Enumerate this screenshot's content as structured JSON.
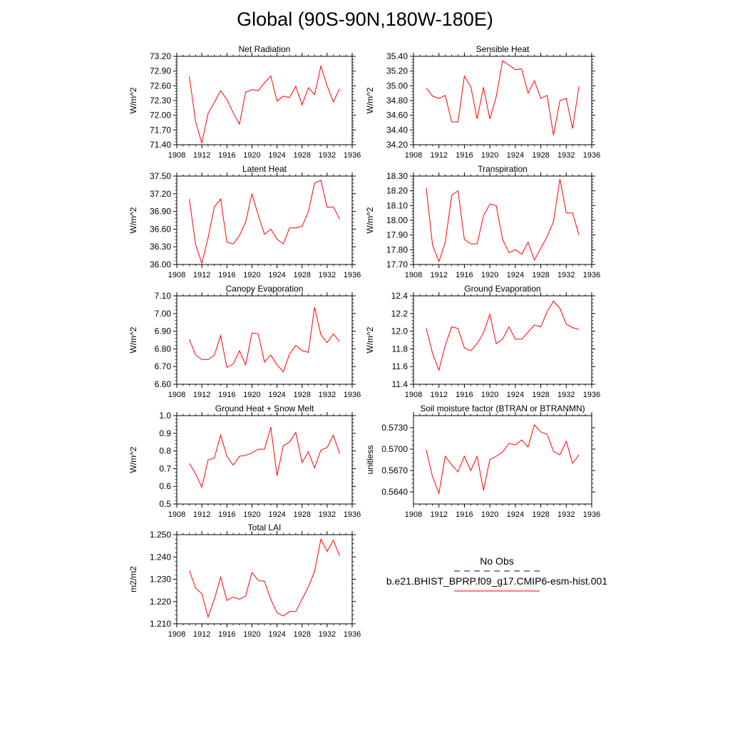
{
  "page": {
    "title": "Global (90S-90N,180W-180E)"
  },
  "legend": {
    "entries": [
      {
        "label": "No Obs",
        "color": "#000080",
        "style": "dashed"
      },
      {
        "label": "b.e21.BHIST_BPRP.f09_g17.CMIP6-esm-hist.001",
        "color": "#ff0000",
        "style": "solid"
      }
    ]
  },
  "chart_data": [
    {
      "type": "line",
      "title": "Net Radiation",
      "ylabel": "W/m^2",
      "xlim": [
        1908,
        1936
      ],
      "xticks": [
        "1908",
        "1912",
        "1916",
        "1920",
        "1924",
        "1928",
        "1932",
        "1936"
      ],
      "ylim": [
        71.4,
        73.2
      ],
      "yticks": [
        "71.40",
        "71.70",
        "72.00",
        "72.30",
        "72.60",
        "72.90",
        "73.20"
      ],
      "series": [
        {
          "color": "#ff0000",
          "x": [
            1910,
            1911,
            1912,
            1913,
            1914,
            1915,
            1916,
            1917,
            1918,
            1919,
            1920,
            1921,
            1922,
            1923,
            1924,
            1925,
            1926,
            1927,
            1928,
            1929,
            1930,
            1931,
            1932,
            1933,
            1934
          ],
          "values": [
            72.79,
            71.87,
            71.43,
            72.04,
            72.26,
            72.5,
            72.32,
            72.05,
            71.82,
            72.47,
            72.52,
            72.5,
            72.66,
            72.8,
            72.29,
            72.39,
            72.36,
            72.59,
            72.21,
            72.56,
            72.42,
            73.0,
            72.6,
            72.27,
            72.54
          ]
        }
      ]
    },
    {
      "type": "line",
      "title": "Sensible Heat",
      "ylabel": "W/m^2",
      "xlim": [
        1908,
        1936
      ],
      "xticks": [
        "1908",
        "1912",
        "1916",
        "1920",
        "1924",
        "1928",
        "1932",
        "1936"
      ],
      "ylim": [
        34.2,
        35.4
      ],
      "yticks": [
        "34.20",
        "34.40",
        "34.60",
        "34.80",
        "35.00",
        "35.20",
        "35.40"
      ],
      "series": [
        {
          "color": "#ff0000",
          "x": [
            1910,
            1911,
            1912,
            1913,
            1914,
            1915,
            1916,
            1917,
            1918,
            1919,
            1920,
            1921,
            1922,
            1923,
            1924,
            1925,
            1926,
            1927,
            1928,
            1929,
            1930,
            1931,
            1932,
            1933,
            1934
          ],
          "values": [
            34.97,
            34.86,
            34.83,
            34.87,
            34.51,
            34.51,
            35.13,
            34.99,
            34.55,
            34.98,
            34.55,
            34.85,
            35.34,
            35.28,
            35.22,
            35.23,
            34.9,
            35.07,
            34.83,
            34.87,
            34.33,
            34.8,
            34.83,
            34.42,
            34.99
          ]
        }
      ]
    },
    {
      "type": "line",
      "title": "Latent Heat",
      "ylabel": "W/m^2",
      "xlim": [
        1908,
        1936
      ],
      "xticks": [
        "1908",
        "1912",
        "1916",
        "1920",
        "1924",
        "1928",
        "1932",
        "1936"
      ],
      "ylim": [
        36.0,
        37.5
      ],
      "yticks": [
        "36.00",
        "36.30",
        "36.60",
        "36.90",
        "37.20",
        "37.50"
      ],
      "series": [
        {
          "color": "#ff0000",
          "x": [
            1910,
            1911,
            1912,
            1913,
            1914,
            1915,
            1916,
            1917,
            1918,
            1919,
            1920,
            1921,
            1922,
            1923,
            1924,
            1925,
            1926,
            1927,
            1928,
            1929,
            1930,
            1931,
            1932,
            1933,
            1934
          ],
          "values": [
            37.11,
            36.34,
            36.02,
            36.45,
            36.98,
            37.11,
            36.38,
            36.35,
            36.49,
            36.72,
            37.2,
            36.84,
            36.51,
            36.6,
            36.43,
            36.35,
            36.62,
            36.62,
            36.65,
            36.89,
            37.38,
            37.43,
            36.97,
            36.98,
            36.77
          ]
        }
      ]
    },
    {
      "type": "line",
      "title": "Transpiration",
      "ylabel": "W/m^2",
      "xlim": [
        1908,
        1936
      ],
      "xticks": [
        "1908",
        "1912",
        "1916",
        "1920",
        "1924",
        "1928",
        "1932",
        "1936"
      ],
      "ylim": [
        17.7,
        18.3
      ],
      "yticks": [
        "17.70",
        "17.80",
        "17.90",
        "18.00",
        "18.10",
        "18.20",
        "18.30"
      ],
      "series": [
        {
          "color": "#ff0000",
          "x": [
            1910,
            1911,
            1912,
            1913,
            1914,
            1915,
            1916,
            1917,
            1918,
            1919,
            1920,
            1921,
            1922,
            1923,
            1924,
            1925,
            1926,
            1927,
            1928,
            1929,
            1930,
            1931,
            1932,
            1933,
            1934
          ],
          "values": [
            18.22,
            17.83,
            17.72,
            17.85,
            18.17,
            18.2,
            17.87,
            17.84,
            17.84,
            18.03,
            18.11,
            18.1,
            17.87,
            17.78,
            17.8,
            17.77,
            17.85,
            17.73,
            17.81,
            17.89,
            17.99,
            18.28,
            18.05,
            18.05,
            17.9
          ]
        }
      ]
    },
    {
      "type": "line",
      "title": "Canopy Evaporation",
      "ylabel": "W/m^2",
      "xlim": [
        1908,
        1936
      ],
      "xticks": [
        "1908",
        "1912",
        "1916",
        "1920",
        "1924",
        "1928",
        "1932",
        "1936"
      ],
      "ylim": [
        6.6,
        7.1
      ],
      "yticks": [
        "6.60",
        "6.70",
        "6.80",
        "6.90",
        "7.00",
        "7.10"
      ],
      "series": [
        {
          "color": "#ff0000",
          "x": [
            1910,
            1911,
            1912,
            1913,
            1914,
            1915,
            1916,
            1917,
            1918,
            1919,
            1920,
            1921,
            1922,
            1923,
            1924,
            1925,
            1926,
            1927,
            1928,
            1929,
            1930,
            1931,
            1932,
            1933,
            1934
          ],
          "values": [
            6.855,
            6.765,
            6.74,
            6.74,
            6.765,
            6.875,
            6.695,
            6.715,
            6.79,
            6.71,
            6.89,
            6.885,
            6.725,
            6.765,
            6.71,
            6.67,
            6.77,
            6.82,
            6.79,
            6.78,
            7.035,
            6.88,
            6.835,
            6.885,
            6.84
          ]
        }
      ]
    },
    {
      "type": "line",
      "title": "Ground Evaporation",
      "ylabel": "W/m^2",
      "xlim": [
        1908,
        1936
      ],
      "xticks": [
        "1908",
        "1912",
        "1916",
        "1920",
        "1924",
        "1928",
        "1932",
        "1936"
      ],
      "ylim": [
        11.4,
        12.4
      ],
      "yticks": [
        "11.4",
        "11.6",
        "11.8",
        "12.0",
        "12.2",
        "12.4"
      ],
      "series": [
        {
          "color": "#ff0000",
          "x": [
            1910,
            1911,
            1912,
            1913,
            1914,
            1915,
            1916,
            1917,
            1918,
            1919,
            1920,
            1921,
            1922,
            1923,
            1924,
            1925,
            1926,
            1927,
            1928,
            1929,
            1930,
            1931,
            1932,
            1933,
            1934
          ],
          "values": [
            12.03,
            11.75,
            11.56,
            11.84,
            12.05,
            12.03,
            11.81,
            11.78,
            11.86,
            11.98,
            12.19,
            11.86,
            11.91,
            12.05,
            11.91,
            11.91,
            11.99,
            12.07,
            12.05,
            12.22,
            12.34,
            12.26,
            12.08,
            12.04,
            12.02
          ]
        }
      ]
    },
    {
      "type": "line",
      "title": "Ground Heat + Snow Melt",
      "ylabel": "W/m^2",
      "xlim": [
        1908,
        1936
      ],
      "xticks": [
        "1908",
        "1912",
        "1916",
        "1920",
        "1924",
        "1928",
        "1932",
        "1936"
      ],
      "ylim": [
        0.5,
        1.0
      ],
      "yticks": [
        "0.5",
        "0.6",
        "0.7",
        "0.8",
        "0.9",
        "1.0"
      ],
      "series": [
        {
          "color": "#ff0000",
          "x": [
            1910,
            1911,
            1912,
            1913,
            1914,
            1915,
            1916,
            1917,
            1918,
            1919,
            1920,
            1921,
            1922,
            1923,
            1924,
            1925,
            1926,
            1927,
            1928,
            1929,
            1930,
            1931,
            1932,
            1933,
            1934
          ],
          "values": [
            0.73,
            0.67,
            0.595,
            0.75,
            0.76,
            0.89,
            0.77,
            0.72,
            0.77,
            0.775,
            0.79,
            0.81,
            0.81,
            0.935,
            0.66,
            0.83,
            0.85,
            0.905,
            0.735,
            0.795,
            0.705,
            0.805,
            0.82,
            0.89,
            0.785
          ]
        }
      ]
    },
    {
      "type": "line",
      "title": "Soil moisture factor (BTRAN or BTRANMN)",
      "ylabel": "unitless",
      "xlim": [
        1908,
        1936
      ],
      "xticks": [
        "1908",
        "1912",
        "1916",
        "1920",
        "1924",
        "1928",
        "1932",
        "1936"
      ],
      "ylim": [
        0.5623,
        0.5747
      ],
      "yticks": [
        "0.5640",
        "0.5670",
        "0.5700",
        "0.5730"
      ],
      "series": [
        {
          "color": "#ff0000",
          "x": [
            1910,
            1911,
            1912,
            1913,
            1914,
            1915,
            1916,
            1917,
            1918,
            1919,
            1920,
            1921,
            1922,
            1923,
            1924,
            1925,
            1926,
            1927,
            1928,
            1929,
            1930,
            1931,
            1932,
            1933,
            1934
          ],
          "values": [
            0.5699,
            0.5661,
            0.5638,
            0.569,
            0.5678,
            0.5668,
            0.569,
            0.567,
            0.569,
            0.5642,
            0.5685,
            0.569,
            0.5696,
            0.5708,
            0.5706,
            0.5713,
            0.5703,
            0.5734,
            0.5724,
            0.5721,
            0.5697,
            0.5692,
            0.5711,
            0.568,
            0.5692
          ]
        }
      ]
    },
    {
      "type": "line",
      "title": "Total LAI",
      "ylabel": "m2/m2",
      "xlim": [
        1908,
        1936
      ],
      "xticks": [
        "1908",
        "1912",
        "1916",
        "1920",
        "1924",
        "1928",
        "1932",
        "1936"
      ],
      "ylim": [
        1.21,
        1.25
      ],
      "yticks": [
        "1.210",
        "1.220",
        "1.230",
        "1.240",
        "1.250"
      ],
      "series": [
        {
          "color": "#ff0000",
          "x": [
            1910,
            1911,
            1912,
            1913,
            1914,
            1915,
            1916,
            1917,
            1918,
            1919,
            1920,
            1921,
            1922,
            1923,
            1924,
            1925,
            1926,
            1927,
            1928,
            1929,
            1930,
            1931,
            1932,
            1933,
            1934
          ],
          "values": [
            1.234,
            1.226,
            1.2235,
            1.213,
            1.221,
            1.231,
            1.2205,
            1.222,
            1.221,
            1.2225,
            1.233,
            1.2295,
            1.229,
            1.221,
            1.215,
            1.2135,
            1.2155,
            1.2155,
            1.221,
            1.2265,
            1.2335,
            1.248,
            1.2425,
            1.2475,
            1.2405
          ]
        }
      ]
    }
  ]
}
